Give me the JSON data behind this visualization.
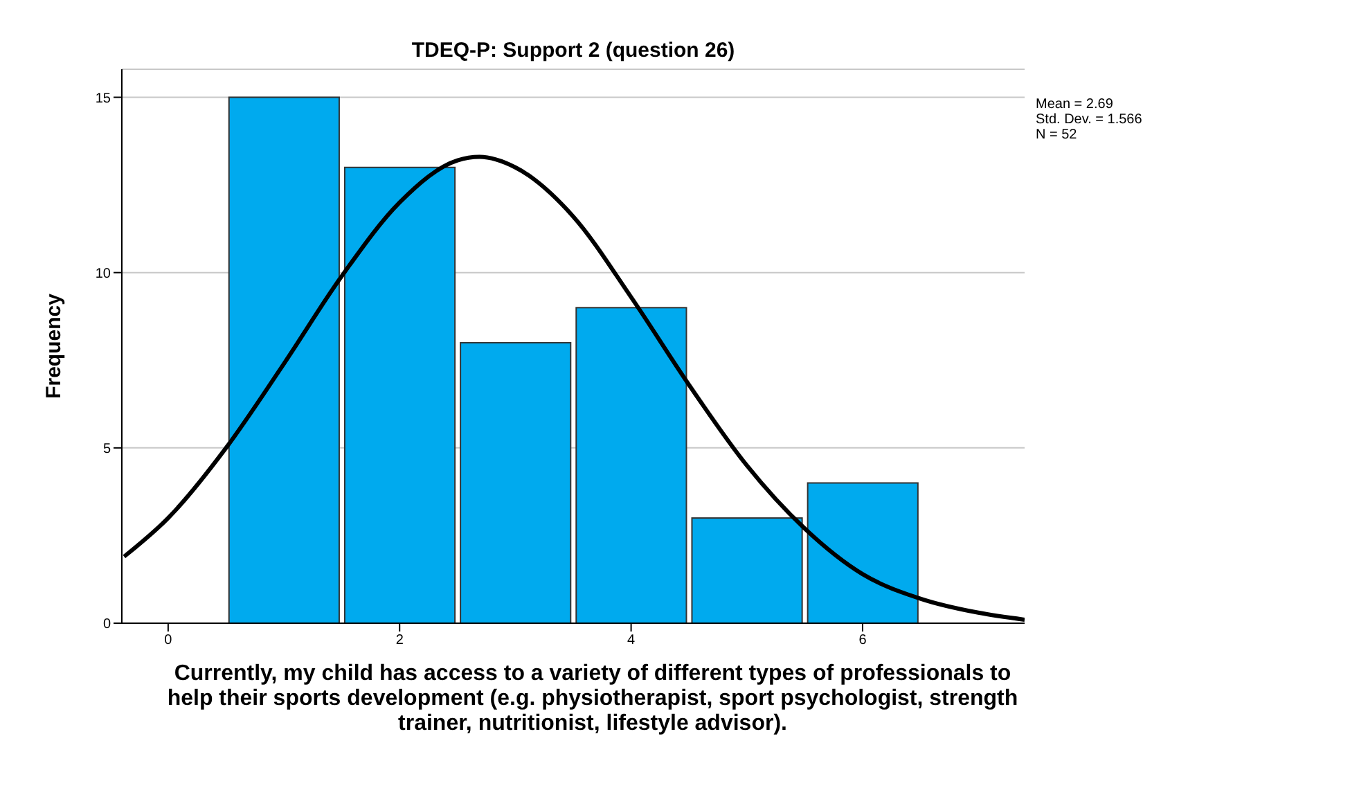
{
  "chart_data": {
    "type": "histogram",
    "title": "TDEQ-P: Support 2 (question 26)",
    "xlabel": "Currently, my child has access to a variety of different types of professionals to help their sports development (e.g. physiotherapist, sport psychologist, strength trainer, nutritionist, lifestyle advisor).",
    "ylabel": "Frequency",
    "bins": [
      0.5,
      1.5,
      2.5,
      3.5,
      4.5,
      5.5,
      6.5
    ],
    "values": [
      15,
      13,
      8,
      9,
      3,
      4
    ],
    "color": "#00aaee",
    "series": [
      {
        "type": "line",
        "color": "#000000",
        "x": [
          -0.38,
          0,
          0.5,
          1,
          1.5,
          2,
          2.5,
          2.69,
          3,
          3.5,
          4,
          4.5,
          5,
          5.5,
          6,
          6.5,
          7,
          7.4
        ],
        "values": [
          1.9,
          3.0,
          5.0,
          7.4,
          9.9,
          12.0,
          13.2,
          13.3,
          13.0,
          11.6,
          9.3,
          6.8,
          4.5,
          2.7,
          1.4,
          0.7,
          0.3,
          0.1
        ]
      }
    ],
    "marker": "none",
    "line_style": "solid",
    "xlim": [
      -0.4,
      7.4
    ],
    "xticks": [
      0,
      2,
      4,
      6
    ],
    "ylim": [
      0,
      15.8
    ],
    "yticks": [
      0,
      5,
      10,
      15
    ],
    "grid": "y",
    "annotations": [
      "Mean = 2.69",
      "Std. Dev. = 1.566",
      "N = 52"
    ]
  }
}
